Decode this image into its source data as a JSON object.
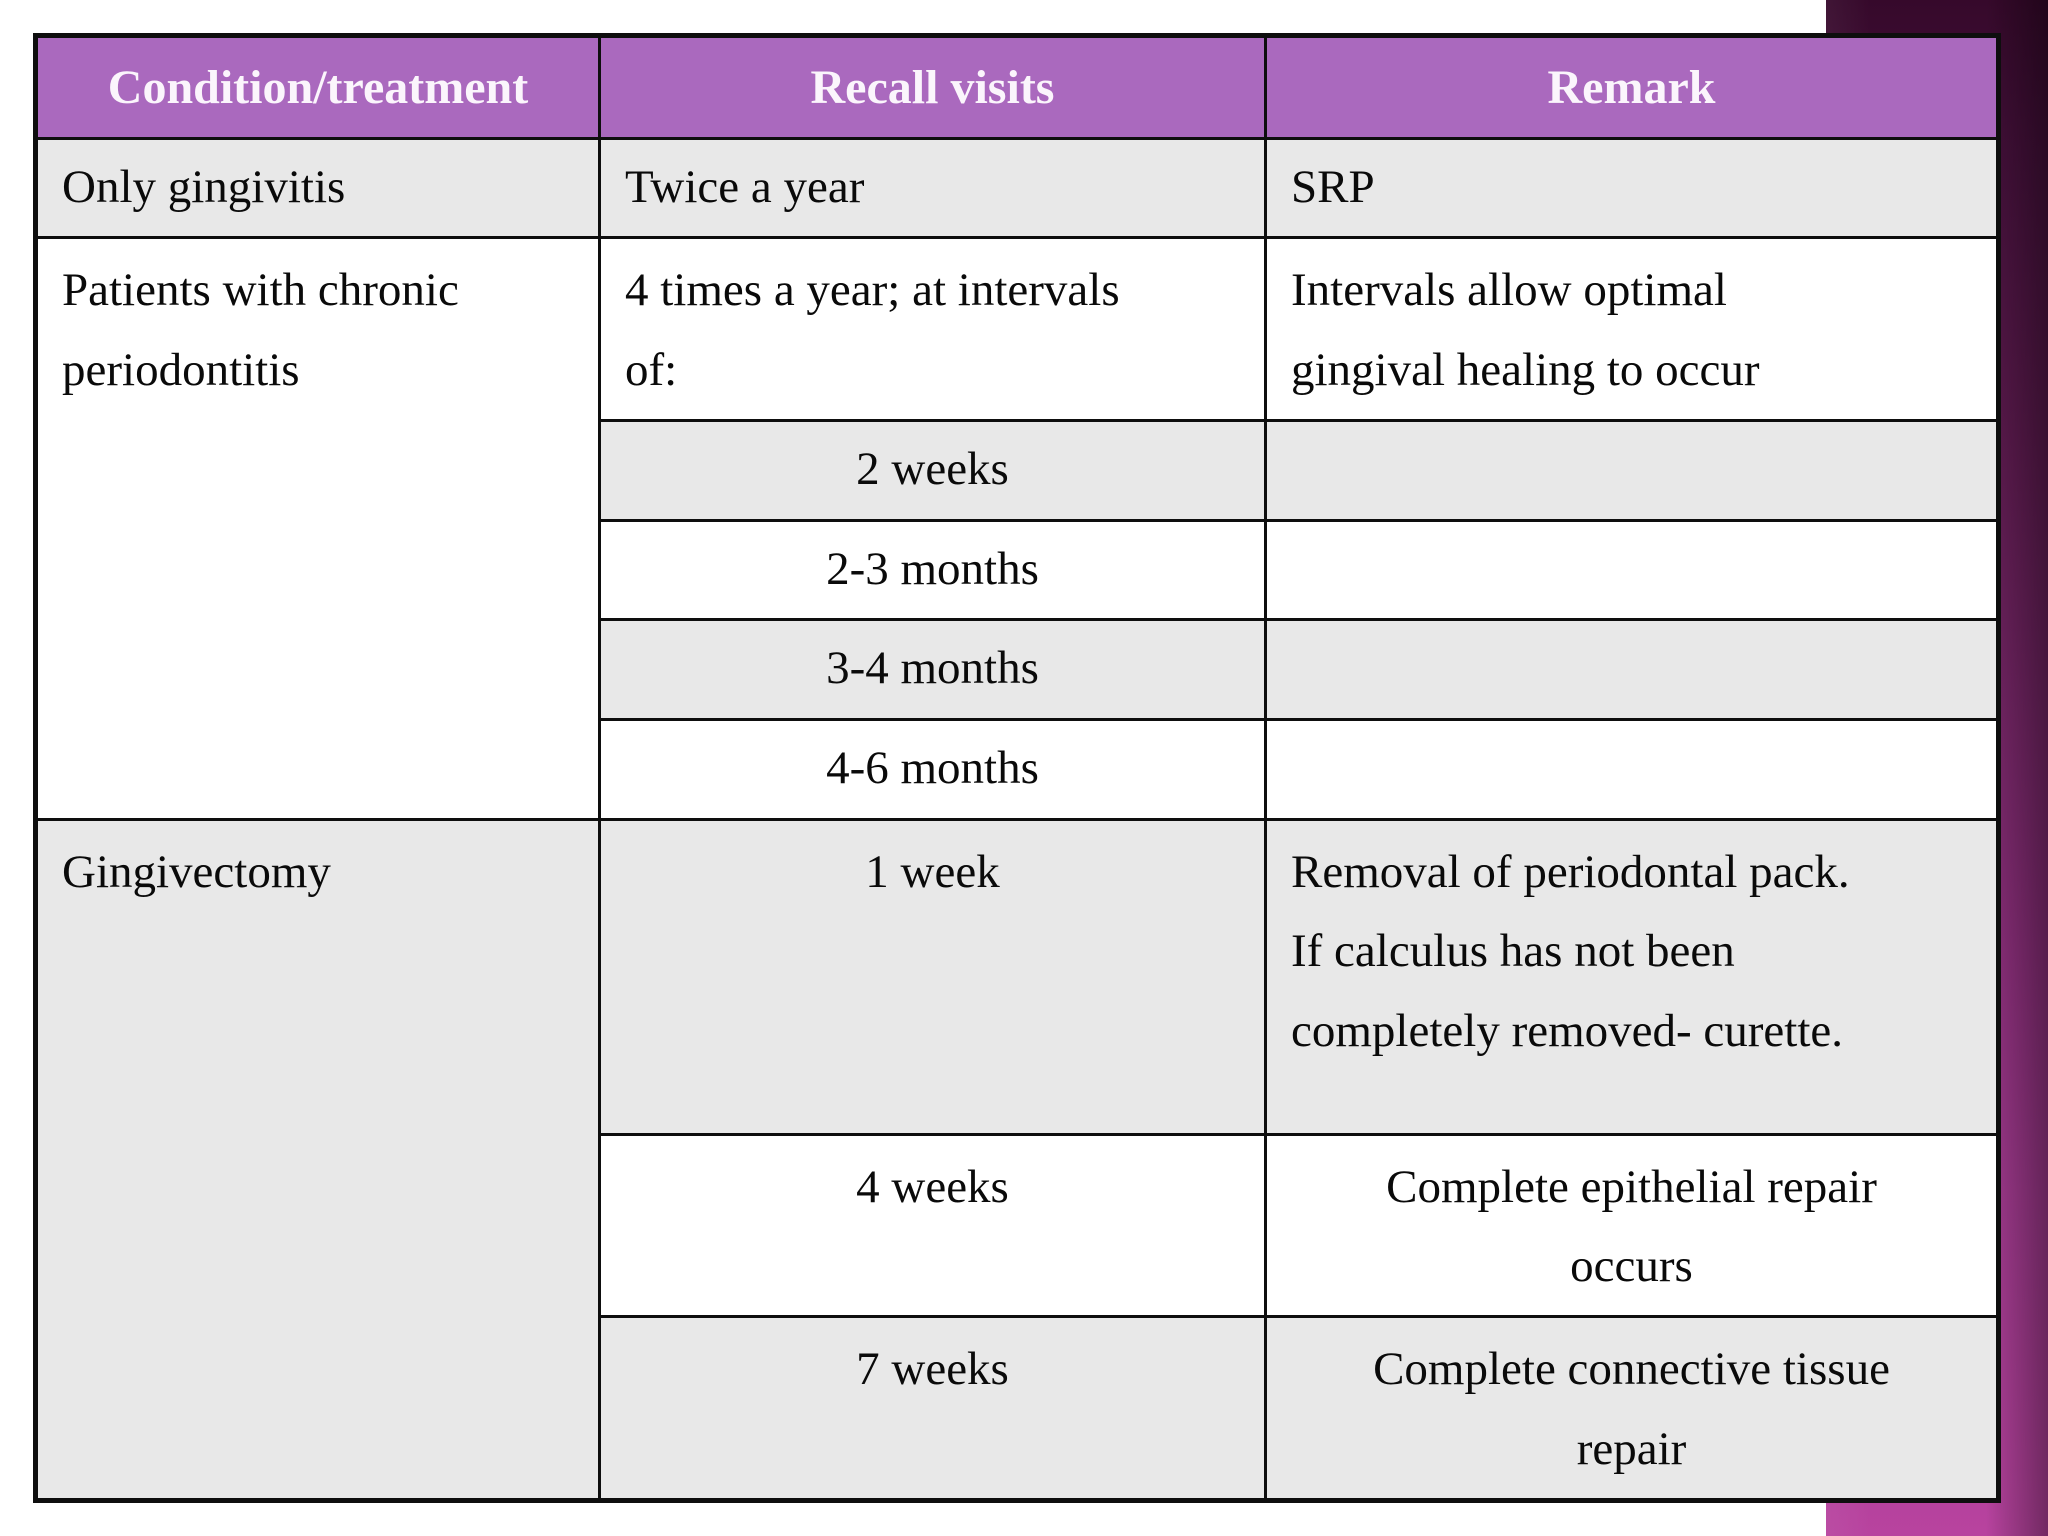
{
  "slide": {
    "background_color": "#ffffff",
    "accent_bar": {
      "description": "vertical gradient bar on right edge",
      "top_color": "#3c0a30",
      "middle_color": "#742565",
      "bottom_color": "#b8439f"
    }
  },
  "table": {
    "border_color": "#0e0e0e",
    "header_bg_color": "#aa69be",
    "header_text_color": "#ffffff",
    "stripe_gray": "#e8e8e8",
    "stripe_white": "#ffffff",
    "columns": [
      {
        "label": "Condition/treatment"
      },
      {
        "label": "Recall visits"
      },
      {
        "label": "Remark"
      }
    ],
    "rows": [
      {
        "condition": "Only gingivitis",
        "recall": "Twice a year",
        "remark": "SRP"
      },
      {
        "condition": "Patients with chronic\nperiodontitis",
        "recall": "4 times a year; at intervals\nof:",
        "remark": "Intervals allow optimal\ngingival healing to occur"
      },
      {
        "recall": "2 weeks",
        "remark": ""
      },
      {
        "recall": "2-3 months",
        "remark": ""
      },
      {
        "recall": "3-4 months",
        "remark": ""
      },
      {
        "recall": "4-6 months",
        "remark": ""
      },
      {
        "condition": "Gingivectomy",
        "recall": "1 week",
        "remark": "Removal of periodontal pack.\nIf calculus has not been\ncompletely removed- curette."
      },
      {
        "recall": "4 weeks",
        "remark": "Complete epithelial repair\noccurs"
      },
      {
        "recall": "7 weeks",
        "remark": "Complete connective tissue\nrepair"
      }
    ]
  }
}
